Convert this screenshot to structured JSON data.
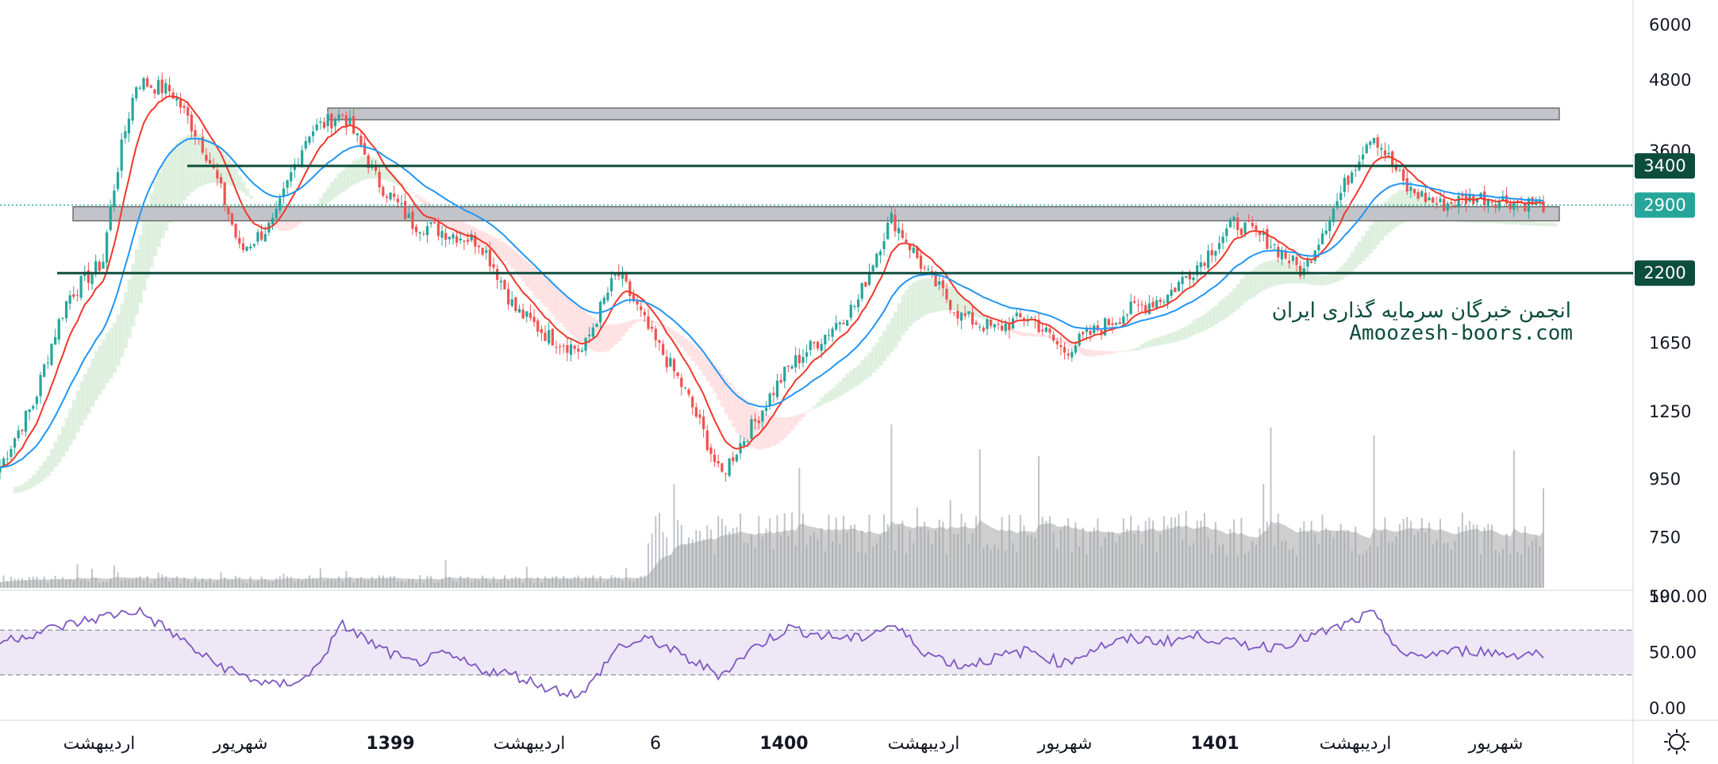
{
  "chart_data": [
    {
      "type": "candlestick",
      "price_axis": {
        "scale": "log",
        "ticks": [
          "6000",
          "4800",
          "3600",
          "2900",
          "2200",
          "1650",
          "1250",
          "950",
          "750",
          "590"
        ]
      },
      "time_axis": {
        "labels": [
          "اردیبهشت",
          "شهریور",
          "1399",
          "اردیبهشت",
          "6",
          "1400",
          "اردیبهشت",
          "شهریور",
          "1401",
          "اردیبهشت",
          "شهریور"
        ],
        "bold_labels": [
          "1399",
          "1400",
          "1401"
        ]
      },
      "price_path": [
        [
          0,
          1000
        ],
        [
          1,
          1300
        ],
        [
          2,
          2000
        ],
        [
          3,
          2300
        ],
        [
          4,
          4800
        ],
        [
          5,
          4600
        ],
        [
          6,
          3600
        ],
        [
          7,
          2400
        ],
        [
          8,
          2700
        ],
        [
          9,
          3900
        ],
        [
          10,
          4200
        ],
        [
          11,
          3200
        ],
        [
          12,
          2700
        ],
        [
          13,
          2600
        ],
        [
          14,
          2500
        ],
        [
          15,
          1900
        ],
        [
          16,
          1700
        ],
        [
          17,
          1600
        ],
        [
          18,
          2200
        ],
        [
          19,
          1700
        ],
        [
          20,
          1350
        ],
        [
          21,
          960
        ],
        [
          22,
          1200
        ],
        [
          23,
          1500
        ],
        [
          24,
          1700
        ],
        [
          25,
          1950
        ],
        [
          26,
          2750
        ],
        [
          27,
          2200
        ],
        [
          28,
          1850
        ],
        [
          29,
          1750
        ],
        [
          30,
          1850
        ],
        [
          31,
          1600
        ],
        [
          32,
          1750
        ],
        [
          33,
          1900
        ],
        [
          34,
          2000
        ],
        [
          35,
          2300
        ],
        [
          36,
          2700
        ],
        [
          37,
          2500
        ],
        [
          38,
          2200
        ],
        [
          39,
          2950
        ],
        [
          40,
          3900
        ],
        [
          41,
          3100
        ],
        [
          42,
          2900
        ],
        [
          43,
          3000
        ],
        [
          44,
          2950
        ],
        [
          45,
          2900
        ]
      ],
      "moving_averages": [
        {
          "name": "MA-short",
          "color": "#f0392b"
        },
        {
          "name": "MA-long",
          "color": "#2196f3"
        }
      ],
      "cloud": {
        "bull_color": "#c8e6c9",
        "bear_color": "#ffcdd2"
      },
      "zones": [
        {
          "type": "band",
          "from": 4100,
          "to": 4300,
          "color": "#c3c4c9"
        },
        {
          "type": "band",
          "from": 2720,
          "to": 2880,
          "color": "#c3c4c9"
        }
      ],
      "levels": [
        {
          "value": 3400,
          "label": "3400",
          "color": "#0d4d3c"
        },
        {
          "value": 2200,
          "label": "2200",
          "color": "#0d4d3c"
        }
      ],
      "current_price": {
        "value": 2900,
        "label": "2900",
        "color": "#26a69a"
      },
      "watermark": [
        "انجمن خبرگان سرمایه گذاری ایران",
        "Amoozesh-boors.com"
      ],
      "volume": {
        "bar_color": "#b2b5be",
        "ma_fill": "#9e9e9e"
      },
      "colors": {
        "up": "#26a69a",
        "down": "#ef5350"
      }
    },
    {
      "type": "line",
      "name": "RSI",
      "y_ticks": [
        "100.00",
        "50.00",
        "0.00"
      ],
      "ylim": [
        0,
        100
      ],
      "bands": [
        30,
        70
      ],
      "band_fill": "#ede7f6",
      "line_color": "#7e57c2",
      "path": [
        [
          0,
          60
        ],
        [
          2,
          75
        ],
        [
          3,
          82
        ],
        [
          4,
          88
        ],
        [
          5,
          68
        ],
        [
          6,
          45
        ],
        [
          7,
          30
        ],
        [
          8,
          20
        ],
        [
          9,
          28
        ],
        [
          10,
          75
        ],
        [
          11,
          55
        ],
        [
          12,
          40
        ],
        [
          13,
          48
        ],
        [
          14,
          35
        ],
        [
          15,
          30
        ],
        [
          16,
          18
        ],
        [
          17,
          12
        ],
        [
          18,
          55
        ],
        [
          19,
          62
        ],
        [
          20,
          45
        ],
        [
          21,
          30
        ],
        [
          22,
          55
        ],
        [
          23,
          72
        ],
        [
          24,
          65
        ],
        [
          25,
          62
        ],
        [
          26,
          75
        ],
        [
          27,
          50
        ],
        [
          28,
          38
        ],
        [
          29,
          45
        ],
        [
          30,
          52
        ],
        [
          31,
          40
        ],
        [
          32,
          55
        ],
        [
          33,
          62
        ],
        [
          34,
          60
        ],
        [
          35,
          65
        ],
        [
          36,
          58
        ],
        [
          37,
          55
        ],
        [
          38,
          62
        ],
        [
          39,
          72
        ],
        [
          40,
          85
        ],
        [
          41,
          45
        ],
        [
          42,
          50
        ],
        [
          43,
          52
        ],
        [
          44,
          48
        ],
        [
          45,
          50
        ]
      ]
    }
  ],
  "icons": {
    "settings": "sun-gear-icon"
  }
}
